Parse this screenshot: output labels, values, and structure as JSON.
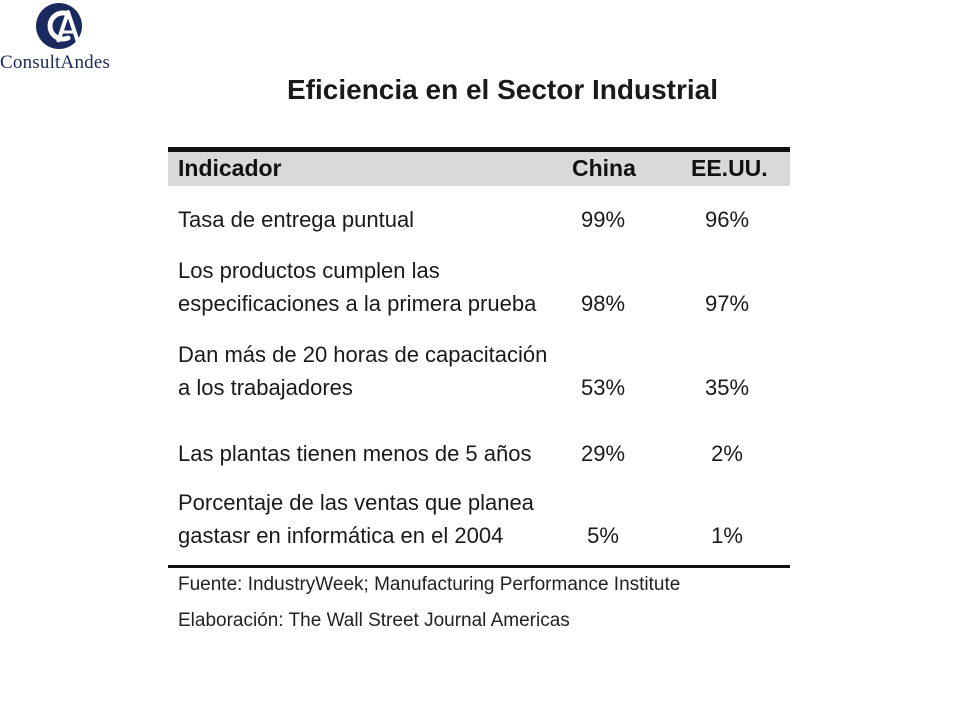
{
  "logo": {
    "text": "ConsultAndes",
    "icon": "ca-monogram-logo",
    "color": "#1b2a5e"
  },
  "title": "Eficiencia en el Sector Industrial",
  "table": {
    "headers": [
      "Indicador",
      "China",
      "EE.UU."
    ],
    "rows": [
      {
        "label": [
          "Tasa de entrega puntual"
        ],
        "china": "99%",
        "usa": "96%"
      },
      {
        "label": [
          "Los productos cumplen las",
          "especificaciones a la primera prueba"
        ],
        "china": "98%",
        "usa": "97%"
      },
      {
        "label": [
          "Dan más de 20 horas de capacitación",
          "a los trabajadores"
        ],
        "china": "53%",
        "usa": "35%"
      },
      {
        "label": [
          "Las plantas tienen menos de 5 años"
        ],
        "china": "29%",
        "usa": "2%"
      },
      {
        "label": [
          "Porcentaje de las ventas que planea",
          "gastasr en informática en el 2004"
        ],
        "china": "5%",
        "usa": "1%"
      }
    ]
  },
  "source": "Fuente: IndustryWeek; Manufacturing Performance Institute",
  "elaboration": "Elaboración: The Wall Street Journal Americas"
}
